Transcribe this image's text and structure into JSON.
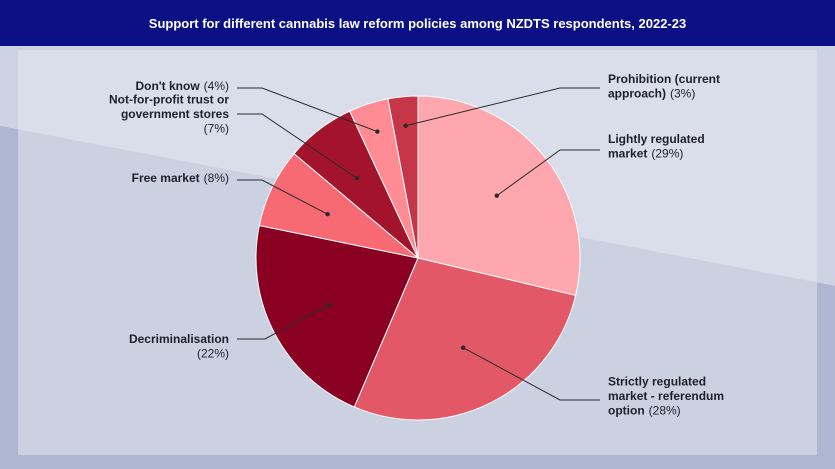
{
  "title": "Support for different cannabis law reform policies among NZDTS respondents, 2022-23",
  "chart_data": {
    "type": "pie",
    "title": "Support for different cannabis law reform policies among NZDTS respondents, 2022-23",
    "slices": [
      {
        "label": "Lightly regulated market",
        "value": 29,
        "pct_label": "(29%)",
        "color": "#ffa7ae"
      },
      {
        "label": "Strictly regulated market - referendum option",
        "value": 28,
        "pct_label": "(28%)",
        "color": "#e35866"
      },
      {
        "label": "Decriminalisation",
        "value": 22,
        "pct_label": "(22%)",
        "color": "#8a0023"
      },
      {
        "label": "Free market",
        "value": 8,
        "pct_label": "(8%)",
        "color": "#f76a73"
      },
      {
        "label": "Not-for-profit trust or government stores",
        "value": 7,
        "pct_label": "(7%)",
        "color": "#a3132c"
      },
      {
        "label": "Don't know",
        "value": 4,
        "pct_label": "(4%)",
        "color": "#ff8c94"
      },
      {
        "label": "Prohibition (current approach)",
        "value": 3,
        "pct_label": "(3%)",
        "color": "#c63649"
      }
    ],
    "label_lines": [
      [
        "Lightly regulated",
        "market"
      ],
      [
        "Strictly regulated",
        "market - referendum",
        "option"
      ],
      [
        "Decriminalisation"
      ],
      [
        "Free market"
      ],
      [
        "Not-for-profit trust or",
        "government stores"
      ],
      [
        "Don't know"
      ],
      [
        "Prohibition (current",
        "approach)"
      ]
    ]
  }
}
